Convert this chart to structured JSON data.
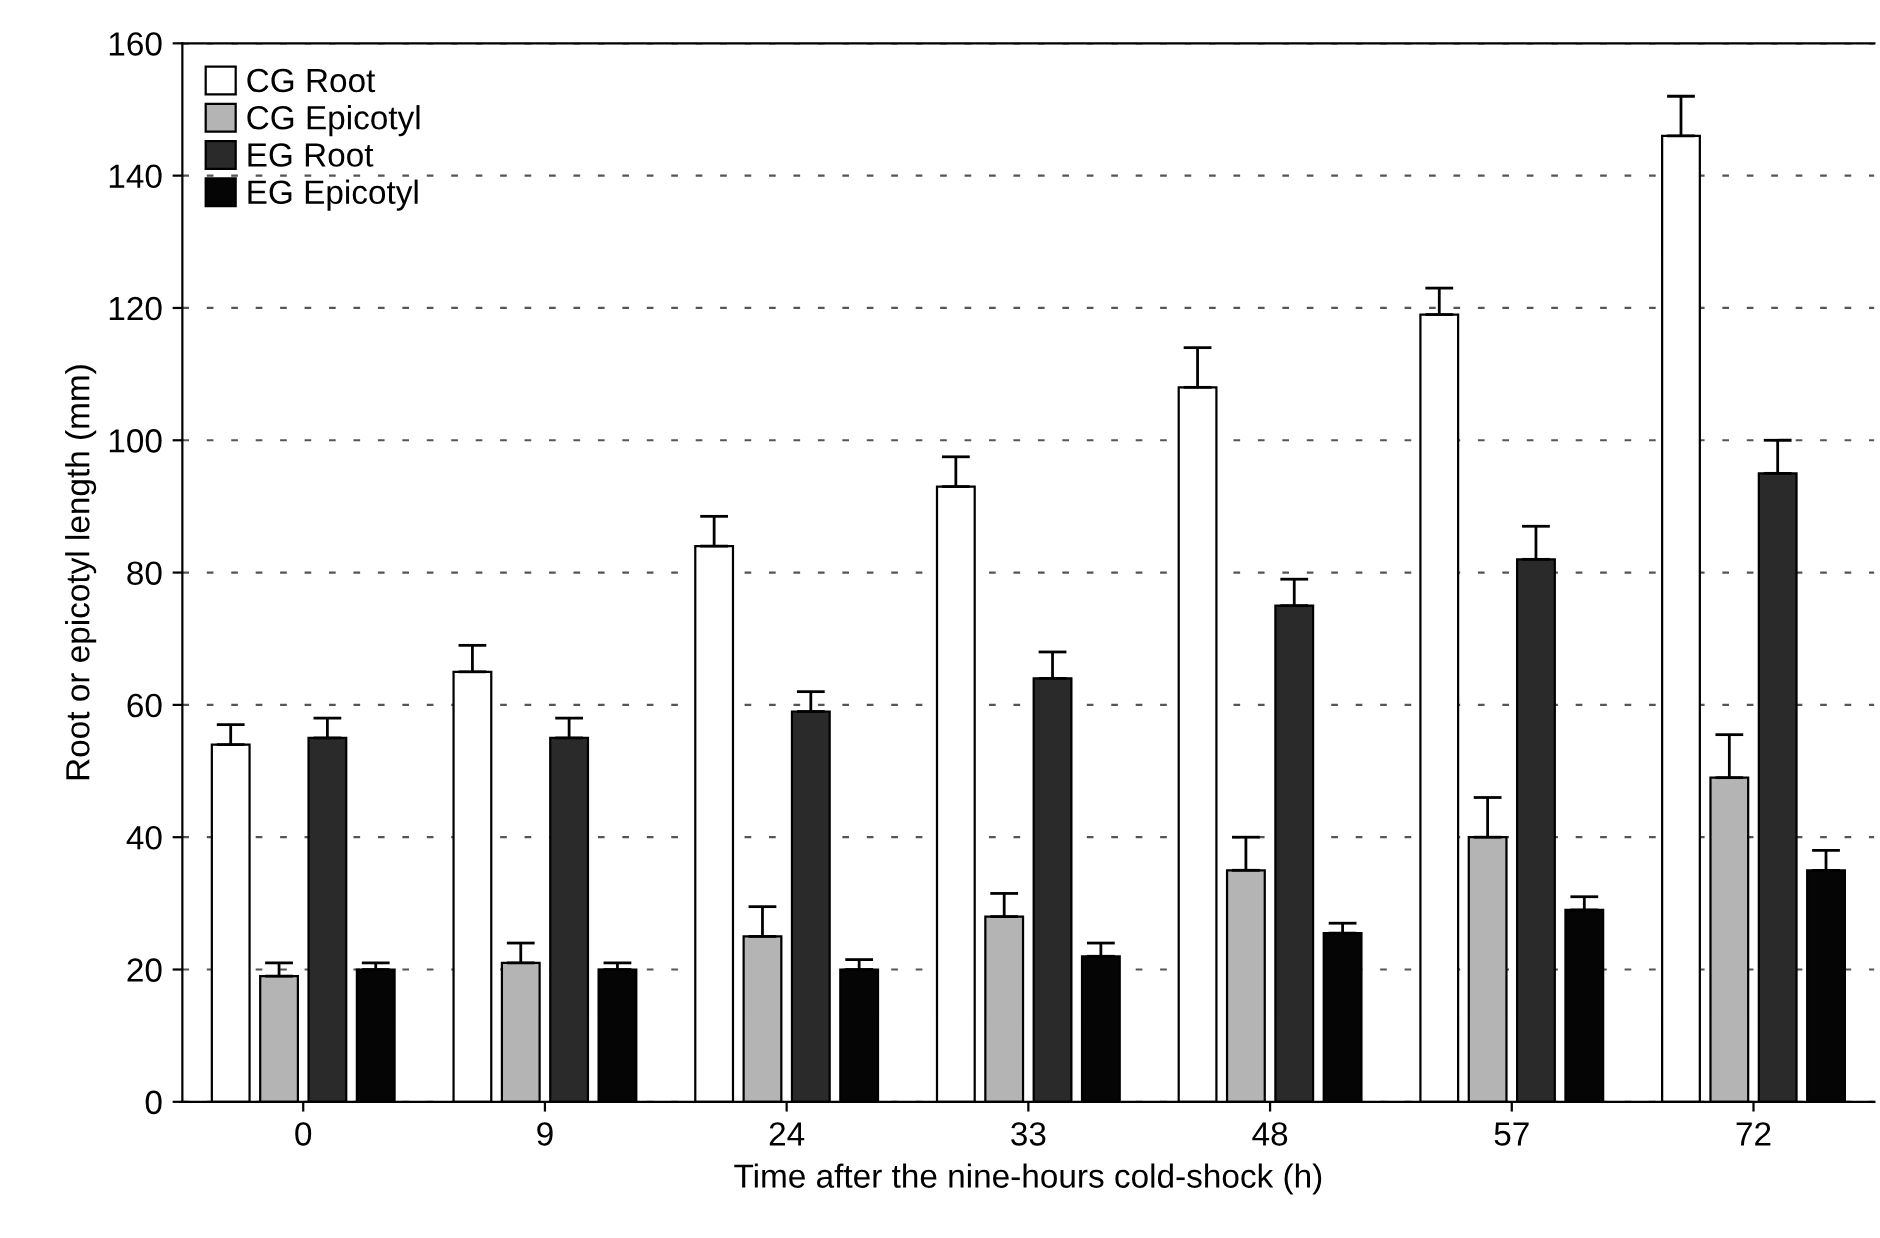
{
  "chart_data": {
    "type": "bar",
    "xlabel": "Time after the nine-hours cold-shock (h)",
    "ylabel": "Root or epicotyl length (mm)",
    "categories": [
      "0",
      "9",
      "24",
      "33",
      "48",
      "57",
      "72"
    ],
    "series": [
      {
        "name": "CG Root",
        "color": "#ffffff",
        "values": [
          54,
          65,
          84,
          93,
          108,
          119,
          146
        ],
        "errors": [
          [
            54,
            57
          ],
          [
            65,
            69
          ],
          [
            84,
            88.5
          ],
          [
            93,
            97.5
          ],
          [
            108,
            114
          ],
          [
            119,
            123
          ],
          [
            146,
            152
          ]
        ]
      },
      {
        "name": "CG Epicotyl",
        "color": "#b4b4b4",
        "values": [
          19,
          21,
          25,
          28,
          35,
          40,
          49
        ],
        "errors": [
          [
            19,
            21
          ],
          [
            21,
            24
          ],
          [
            25,
            29.5
          ],
          [
            28,
            31.5
          ],
          [
            35,
            40
          ],
          [
            40,
            46
          ],
          [
            49,
            55.5
          ]
        ]
      },
      {
        "name": "EG Root",
        "color": "#2a2a2a",
        "values": [
          55,
          55,
          59,
          64,
          75,
          82,
          95
        ],
        "errors": [
          [
            55,
            58
          ],
          [
            55,
            58
          ],
          [
            59,
            62
          ],
          [
            64,
            68
          ],
          [
            75,
            79
          ],
          [
            82,
            87
          ],
          [
            95,
            100
          ]
        ]
      },
      {
        "name": "EG Epicotyl",
        "color": "#050505",
        "values": [
          20,
          20,
          20,
          22,
          25.5,
          29,
          35
        ],
        "errors": [
          [
            20,
            21
          ],
          [
            20,
            21
          ],
          [
            20,
            21.5
          ],
          [
            22,
            24
          ],
          [
            25.5,
            27
          ],
          [
            29,
            31
          ],
          [
            35,
            38
          ]
        ]
      }
    ],
    "ylim": [
      0,
      160
    ],
    "yticks": [
      0,
      20,
      40,
      60,
      80,
      100,
      120,
      140,
      160
    ],
    "grid": "y",
    "legend": "top left"
  }
}
